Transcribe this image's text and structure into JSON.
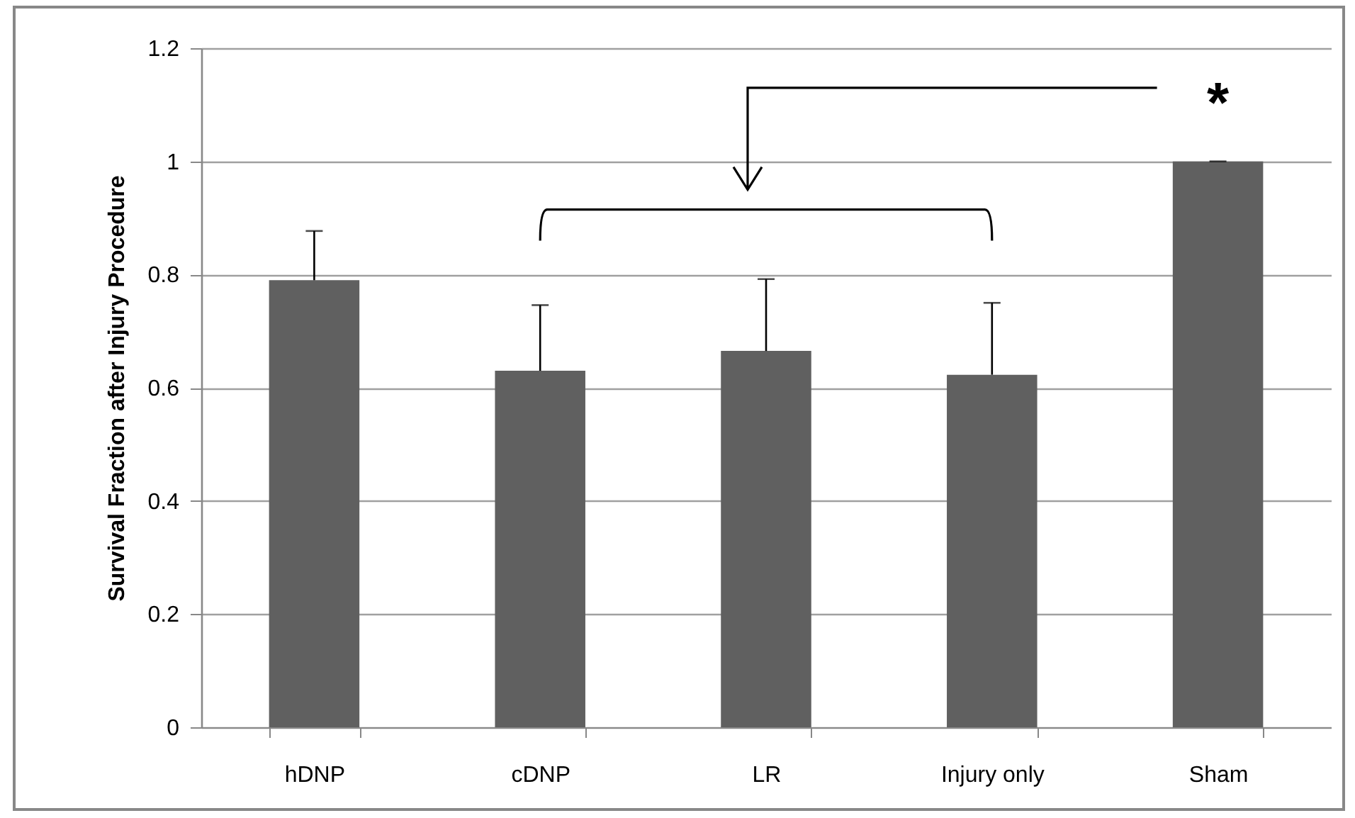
{
  "chart_data": {
    "type": "bar",
    "ylabel": "Survival Fraction after Injury Procedure",
    "categories": [
      "hDNP",
      "cDNP",
      "LR",
      "Injury only",
      "Sham"
    ],
    "values": [
      0.79,
      0.63,
      0.665,
      0.623,
      1.0
    ],
    "errors": [
      [
        0.79,
        0.877
      ],
      [
        0.63,
        0.746
      ],
      [
        0.665,
        0.792
      ],
      [
        0.623,
        0.75
      ],
      [
        1.0,
        1.0
      ]
    ],
    "color": "#606060",
    "ylim": [
      0,
      1.2
    ],
    "yticks": [
      0,
      0.2,
      0.4,
      0.6,
      0.8,
      1,
      1.2
    ],
    "grid": "y",
    "annotations": [
      "*"
    ]
  }
}
